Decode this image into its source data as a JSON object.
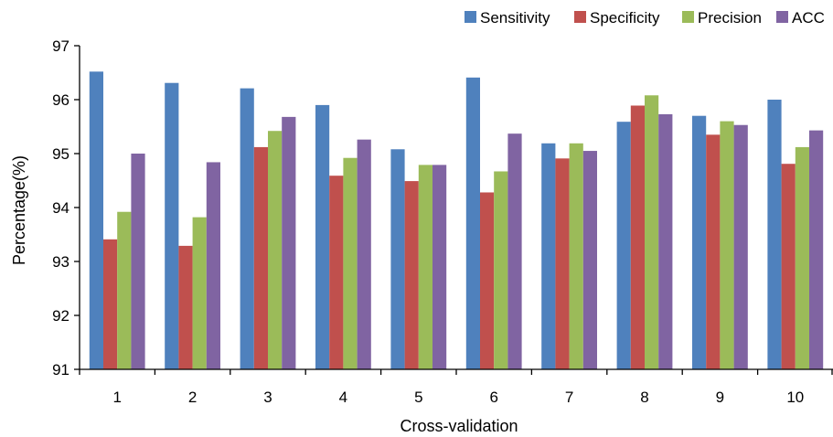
{
  "chart_data": {
    "type": "bar",
    "title": "",
    "xlabel": "Cross-validation",
    "ylabel": "Percentage(%)",
    "ylim": [
      91,
      97
    ],
    "yticks": [
      91,
      92,
      93,
      94,
      95,
      96,
      97
    ],
    "grid": false,
    "legend_position": "top-right",
    "categories": [
      "1",
      "2",
      "3",
      "4",
      "5",
      "6",
      "7",
      "8",
      "9",
      "10"
    ],
    "series": [
      {
        "name": "Sensitivity",
        "color": "#4F81BD",
        "values": [
          96.52,
          96.31,
          96.21,
          95.9,
          95.08,
          96.41,
          95.19,
          95.59,
          95.7,
          96.0
        ]
      },
      {
        "name": "Specificity",
        "color": "#C0504D",
        "values": [
          93.41,
          93.29,
          95.12,
          94.59,
          94.49,
          94.28,
          94.91,
          95.89,
          95.35,
          94.81
        ]
      },
      {
        "name": "Precision",
        "color": "#9BBB59",
        "values": [
          93.92,
          93.82,
          95.42,
          94.92,
          94.79,
          94.67,
          95.19,
          96.08,
          95.6,
          95.12
        ]
      },
      {
        "name": "ACC",
        "color": "#8064A2",
        "values": [
          95.0,
          94.84,
          95.68,
          95.26,
          94.79,
          95.37,
          95.05,
          95.73,
          95.53,
          95.43
        ]
      }
    ]
  }
}
